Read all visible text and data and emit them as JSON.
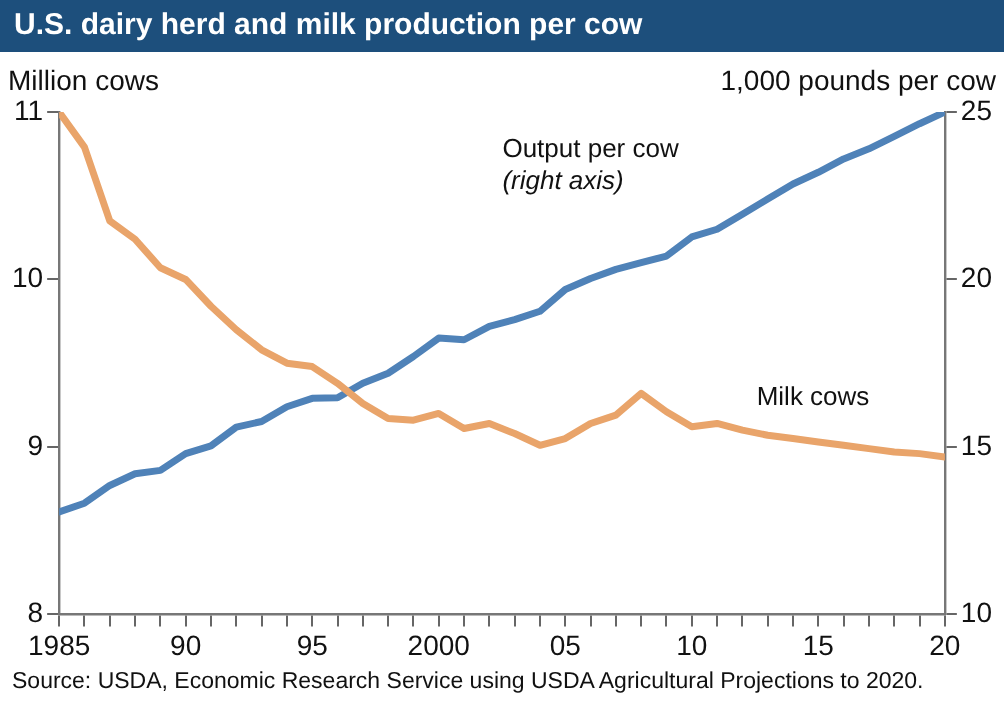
{
  "chart_data": {
    "type": "line",
    "title": "U.S. dairy herd and milk production per cow",
    "ylabel": "Million cows",
    "y2label": "1,000 pounds per cow",
    "x": [
      1985,
      1986,
      1987,
      1988,
      1989,
      1990,
      1991,
      1992,
      1993,
      1994,
      1995,
      1996,
      1997,
      1998,
      1999,
      2000,
      2001,
      2002,
      2003,
      2004,
      2005,
      2006,
      2007,
      2008,
      2009,
      2010,
      2011,
      2012,
      2013,
      2014,
      2015,
      2016,
      2017,
      2018,
      2019,
      2020
    ],
    "series": [
      {
        "name": "Milk cows",
        "color": "#e9a46a",
        "values": [
          11.0,
          10.79,
          10.35,
          10.24,
          10.07,
          10.0,
          9.84,
          9.7,
          9.58,
          9.5,
          9.48,
          9.38,
          9.26,
          9.17,
          9.16,
          9.2,
          9.11,
          9.14,
          9.08,
          9.01,
          9.05,
          9.14,
          9.19,
          9.32,
          9.21,
          9.12,
          9.14,
          9.1,
          9.07,
          9.05,
          9.03,
          9.01,
          8.99,
          8.97,
          8.96,
          8.94
        ]
      },
      {
        "name": "Output per cow",
        "color": "#4f82b8",
        "axis": "y2",
        "values": [
          13.06,
          13.32,
          13.85,
          14.2,
          14.3,
          14.8,
          15.03,
          15.59,
          15.76,
          16.2,
          16.45,
          16.47,
          16.9,
          17.2,
          17.7,
          18.25,
          18.2,
          18.6,
          18.8,
          19.05,
          19.7,
          20.03,
          20.3,
          20.5,
          20.7,
          21.27,
          21.5,
          21.95,
          22.4,
          22.85,
          23.2,
          23.6,
          23.9,
          24.27,
          24.65,
          25.0
        ]
      }
    ],
    "xlim": [
      1985,
      2020
    ],
    "xticks": [
      {
        "value": 1985,
        "label": "1985"
      },
      {
        "value": 1986,
        "label": null
      },
      {
        "value": 1987,
        "label": null
      },
      {
        "value": 1988,
        "label": null
      },
      {
        "value": 1989,
        "label": null
      },
      {
        "value": 1990,
        "label": "90"
      },
      {
        "value": 1991,
        "label": null
      },
      {
        "value": 1992,
        "label": null
      },
      {
        "value": 1993,
        "label": null
      },
      {
        "value": 1994,
        "label": null
      },
      {
        "value": 1995,
        "label": "95"
      },
      {
        "value": 1996,
        "label": null
      },
      {
        "value": 1997,
        "label": null
      },
      {
        "value": 1998,
        "label": null
      },
      {
        "value": 1999,
        "label": null
      },
      {
        "value": 2000,
        "label": "2000"
      },
      {
        "value": 2001,
        "label": null
      },
      {
        "value": 2002,
        "label": null
      },
      {
        "value": 2003,
        "label": null
      },
      {
        "value": 2004,
        "label": null
      },
      {
        "value": 2005,
        "label": "05"
      },
      {
        "value": 2006,
        "label": null
      },
      {
        "value": 2007,
        "label": null
      },
      {
        "value": 2008,
        "label": null
      },
      {
        "value": 2009,
        "label": null
      },
      {
        "value": 2010,
        "label": "10"
      },
      {
        "value": 2011,
        "label": null
      },
      {
        "value": 2012,
        "label": null
      },
      {
        "value": 2013,
        "label": null
      },
      {
        "value": 2014,
        "label": null
      },
      {
        "value": 2015,
        "label": "15"
      },
      {
        "value": 2016,
        "label": null
      },
      {
        "value": 2017,
        "label": null
      },
      {
        "value": 2018,
        "label": null
      },
      {
        "value": 2019,
        "label": null
      },
      {
        "value": 2020,
        "label": "20"
      }
    ],
    "ylim": [
      8,
      11
    ],
    "yticks": [
      8,
      9,
      10,
      11
    ],
    "y2lim": [
      10,
      25
    ],
    "y2ticks": [
      10,
      15,
      20,
      25
    ],
    "annotations": [
      "(right axis)",
      "Source: USDA, Economic Research Service using USDA Agricultural Projections to 2020."
    ],
    "grid": false,
    "legend": false,
    "marker": "none",
    "line_style": "solid"
  }
}
